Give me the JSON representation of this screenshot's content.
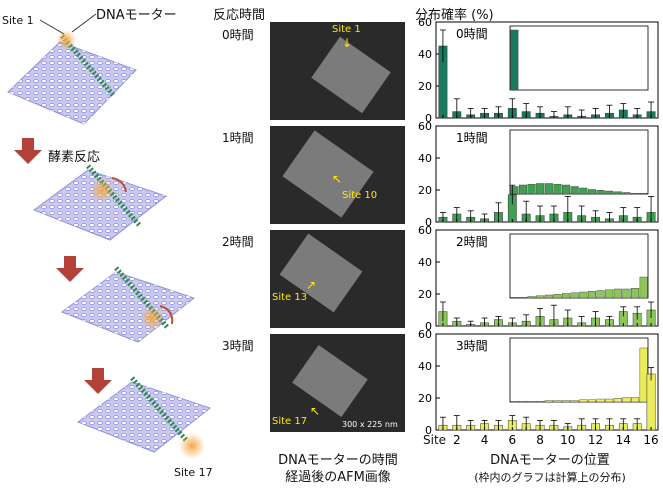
{
  "left": {
    "site1_label": "Site 1",
    "motor_label": "DNAモーター",
    "enzyme_label": "酵素反応",
    "site17_label": "Site 17"
  },
  "afm": {
    "header": "反応時間",
    "times": [
      "0時間",
      "1時間",
      "2時間",
      "3時間"
    ],
    "site_labels": [
      "Site 1",
      "Site 10",
      "Site 13",
      "Site 17"
    ],
    "scale": "300 x 225 nm",
    "caption_line1": "DNAモーターの時間",
    "caption_line2": "経過後のAFM画像"
  },
  "chart_header": "分布確率 (%)",
  "xaxis": {
    "prefix": "Site",
    "ticks": [
      "2",
      "4",
      "6",
      "8",
      "10",
      "12",
      "14",
      "16"
    ],
    "title": "DNAモーターの位置",
    "subtitle": "(枠内のグラフは計算上の分布)"
  },
  "colors": {
    "p0": "#1b7a5e",
    "p1": "#3f9f53",
    "p2": "#8cc65a",
    "p3": "#eaec5a"
  },
  "chart_data": [
    {
      "type": "bar",
      "panel_label": "0時間",
      "ylim": [
        0,
        60
      ],
      "yticks": [
        "0",
        "20",
        "40",
        "60"
      ],
      "values": [
        45,
        4,
        2,
        3,
        3,
        6,
        4,
        3,
        1,
        2,
        1,
        2,
        3,
        5,
        2,
        4
      ],
      "errors": [
        10,
        8,
        4,
        3,
        4,
        6,
        5,
        4,
        3,
        5,
        4,
        4,
        5,
        4,
        4,
        6
      ],
      "inset_values": [
        1,
        0,
        0,
        0,
        0,
        0,
        0,
        0,
        0,
        0,
        0,
        0,
        0,
        0,
        0,
        0
      ]
    },
    {
      "type": "bar",
      "panel_label": "1時間",
      "ylim": [
        0,
        60
      ],
      "yticks": [
        "0",
        "20",
        "40",
        "60"
      ],
      "values": [
        3,
        5,
        3,
        2,
        6,
        17,
        5,
        4,
        5,
        6,
        4,
        3,
        2,
        4,
        3,
        6
      ],
      "errors": [
        3,
        4,
        4,
        3,
        6,
        6,
        8,
        6,
        5,
        10,
        6,
        4,
        4,
        5,
        6,
        10
      ],
      "inset_values": [
        0.1,
        0.12,
        0.13,
        0.14,
        0.14,
        0.13,
        0.12,
        0.1,
        0.08,
        0.06,
        0.05,
        0.04,
        0.03,
        0.02,
        0.01,
        0.01
      ]
    },
    {
      "type": "bar",
      "panel_label": "2時間",
      "ylim": [
        0,
        60
      ],
      "yticks": [
        "0",
        "20",
        "40",
        "60"
      ],
      "values": [
        9,
        3,
        1,
        2,
        4,
        2,
        3,
        6,
        4,
        5,
        2,
        5,
        4,
        9,
        8,
        10
      ],
      "errors": [
        6,
        2,
        2,
        3,
        2,
        3,
        4,
        5,
        9,
        5,
        4,
        4,
        2,
        3,
        4,
        5
      ],
      "inset_values": [
        0.01,
        0.01,
        0.02,
        0.03,
        0.04,
        0.05,
        0.06,
        0.07,
        0.08,
        0.09,
        0.1,
        0.11,
        0.12,
        0.12,
        0.13,
        0.28
      ]
    },
    {
      "type": "bar",
      "panel_label": "3時間",
      "ylim": [
        0,
        60
      ],
      "yticks": [
        "0",
        "20",
        "40",
        "60"
      ],
      "values": [
        3,
        3,
        3,
        4,
        3,
        6,
        4,
        3,
        3,
        2,
        3,
        4,
        3,
        4,
        4,
        35
      ],
      "errors": [
        5,
        6,
        3,
        2,
        3,
        3,
        4,
        3,
        3,
        2,
        4,
        3,
        4,
        3,
        3,
        4
      ],
      "inset_values": [
        0.01,
        0.01,
        0.01,
        0.01,
        0.02,
        0.02,
        0.02,
        0.02,
        0.03,
        0.03,
        0.04,
        0.04,
        0.05,
        0.06,
        0.06,
        0.72
      ]
    }
  ]
}
